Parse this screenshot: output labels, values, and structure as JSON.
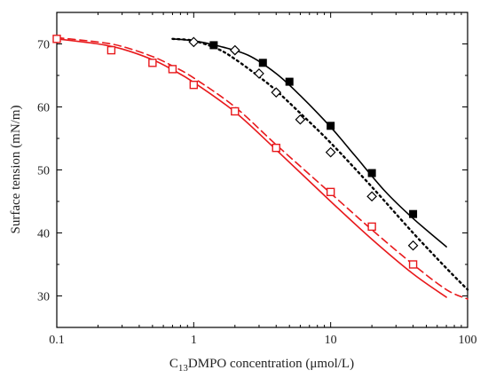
{
  "chart_data": {
    "type": "scatter",
    "xlabel": {
      "prefix": "C",
      "sub": "13",
      "suffix": "DMPO concentration (μmol/L)"
    },
    "ylabel": "Surface tension (mN/m)",
    "xscale": "log",
    "xlim": [
      0.1,
      100
    ],
    "ylim": [
      25,
      75
    ],
    "xticks": [
      {
        "value": 0.1,
        "label": "0.1"
      },
      {
        "value": 1,
        "label": "1"
      },
      {
        "value": 10,
        "label": "10"
      },
      {
        "value": 100,
        "label": "100"
      }
    ],
    "yticks": [
      {
        "value": 30,
        "label": "30"
      },
      {
        "value": 40,
        "label": "40"
      },
      {
        "value": 50,
        "label": "50"
      },
      {
        "value": 60,
        "label": "60"
      },
      {
        "value": 70,
        "label": "70"
      }
    ],
    "grid": false,
    "legend": "none",
    "series": [
      {
        "marker": "filled-square",
        "color": "#000000",
        "points": [
          [
            1.4,
            69.8
          ],
          [
            3.2,
            67.0
          ],
          [
            5.0,
            64.0
          ],
          [
            10.0,
            57.0
          ],
          [
            20.0,
            49.5
          ],
          [
            40.0,
            43.0
          ]
        ],
        "fit": {
          "style": "solid",
          "color": "#000000",
          "points": [
            [
              0.7,
              70.8
            ],
            [
              1.0,
              70.5
            ],
            [
              1.5,
              69.7
            ],
            [
              2.5,
              68.2
            ],
            [
              4.0,
              65.3
            ],
            [
              6.0,
              61.8
            ],
            [
              10.0,
              56.8
            ],
            [
              15.0,
              52.3
            ],
            [
              25.0,
              46.6
            ],
            [
              40.0,
              42.3
            ],
            [
              70.0,
              37.8
            ]
          ]
        }
      },
      {
        "marker": "open-diamond",
        "color": "#000000",
        "points": [
          [
            1.0,
            70.3
          ],
          [
            2.0,
            69.0
          ],
          [
            3.0,
            65.3
          ],
          [
            4.0,
            62.3
          ],
          [
            6.0,
            58.0
          ],
          [
            10.0,
            52.8
          ],
          [
            20.0,
            45.8
          ],
          [
            40.0,
            38.0
          ]
        ],
        "fit": {
          "style": "dotted",
          "color": "#000000",
          "points": [
            [
              0.7,
              70.8
            ],
            [
              1.0,
              70.5
            ],
            [
              1.5,
              69.2
            ],
            [
              2.0,
              67.6
            ],
            [
              3.0,
              64.8
            ],
            [
              4.0,
              62.6
            ],
            [
              6.0,
              59.0
            ],
            [
              10.0,
              54.3
            ],
            [
              20.0,
              47.3
            ],
            [
              40.0,
              40.0
            ],
            [
              70.0,
              34.4
            ],
            [
              100.0,
              31.0
            ]
          ]
        }
      },
      {
        "marker": "open-square",
        "color": "#e8191c",
        "points": [
          [
            0.1,
            70.8
          ],
          [
            0.25,
            69.0
          ],
          [
            0.5,
            67.0
          ],
          [
            0.7,
            66.0
          ],
          [
            1.0,
            63.5
          ],
          [
            2.0,
            59.3
          ],
          [
            4.0,
            53.5
          ],
          [
            10.0,
            46.5
          ],
          [
            20.0,
            41.0
          ],
          [
            40.0,
            35.0
          ]
        ],
        "fit_dashed": {
          "style": "dashed",
          "color": "#e8191c",
          "points": [
            [
              0.1,
              71.0
            ],
            [
              0.2,
              70.3
            ],
            [
              0.3,
              69.6
            ],
            [
              0.5,
              68.0
            ],
            [
              0.7,
              66.5
            ],
            [
              1.0,
              64.6
            ],
            [
              2.0,
              60.0
            ],
            [
              4.0,
              54.0
            ],
            [
              10.0,
              46.3
            ],
            [
              20.0,
              40.5
            ],
            [
              40.0,
              35.0
            ],
            [
              70.0,
              31.0
            ],
            [
              100.0,
              29.5
            ]
          ]
        },
        "fit_solid": {
          "style": "solid",
          "color": "#e8191c",
          "points": [
            [
              0.1,
              70.8
            ],
            [
              0.2,
              70.0
            ],
            [
              0.3,
              69.2
            ],
            [
              0.5,
              67.5
            ],
            [
              0.7,
              65.9
            ],
            [
              1.0,
              63.9
            ],
            [
              2.0,
              59.2
            ],
            [
              4.0,
              53.2
            ],
            [
              10.0,
              45.0
            ],
            [
              20.0,
              39.0
            ],
            [
              40.0,
              33.5
            ],
            [
              70.0,
              29.8
            ]
          ]
        }
      }
    ]
  }
}
